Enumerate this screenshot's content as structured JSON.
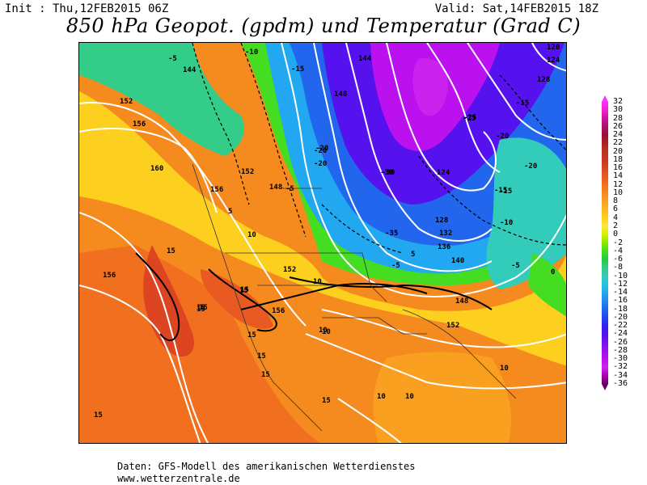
{
  "header": {
    "init": "Init : Thu,12FEB2015 06Z",
    "valid": "Valid: Sat,14FEB2015 18Z",
    "title": "850 hPa Geopot. (gpdm) und Temperatur (Grad C)"
  },
  "colorbar": {
    "levels": [
      "32",
      "30",
      "28",
      "26",
      "24",
      "22",
      "20",
      "18",
      "16",
      "14",
      "12",
      "10",
      "8",
      "6",
      "4",
      "2",
      "0",
      "-2",
      "-4",
      "-6",
      "-8",
      "-10",
      "-12",
      "-14",
      "-16",
      "-18",
      "-20",
      "-22",
      "-24",
      "-26",
      "-28",
      "-30",
      "-32",
      "-34",
      "-36"
    ],
    "colors": [
      "#ff33ff",
      "#ee22cc",
      "#cc1199",
      "#aa1166",
      "#991133",
      "#aa2222",
      "#bb3322",
      "#cc3322",
      "#dd4422",
      "#e85a22",
      "#f07020",
      "#f58a1e",
      "#f9a020",
      "#fcb820",
      "#fdd020",
      "#fde840",
      "#d4f000",
      "#88e800",
      "#44dd22",
      "#22cc44",
      "#33cc88",
      "#33ccbb",
      "#22c4e0",
      "#22a8f0",
      "#2288f0",
      "#2266ee",
      "#2244ee",
      "#3322ee",
      "#5511ee",
      "#7711ee",
      "#9911ee",
      "#bb11ee",
      "#cc22ee",
      "#aa00aa",
      "#660066"
    ]
  },
  "map_labels": {
    "geopotential": [
      "160",
      "156",
      "152",
      "148",
      "144",
      "140",
      "136",
      "132",
      "128",
      "124",
      "120",
      "152",
      "156",
      "152",
      "148",
      "152",
      "156",
      "144",
      "148",
      "124",
      "128",
      "156"
    ],
    "temperature": [
      "-5",
      "-10",
      "-15",
      "-20",
      "-25",
      "-30",
      "-35",
      "-5",
      "5",
      "10",
      "15",
      "15",
      "15",
      "-20",
      "-15",
      "-10",
      "-5",
      "0",
      "10",
      "15",
      "10",
      "-15",
      "-20",
      "-25",
      "-30",
      "5",
      "15",
      "10",
      "-5",
      "-20",
      "-15",
      "-20",
      "10",
      "15",
      "15",
      "15",
      "10",
      "10",
      "15",
      "15",
      "15"
    ]
  },
  "footer": {
    "line1": "Daten: GFS-Modell des amerikanischen Wetterdienstes",
    "line2": "www.wetterzentrale.de"
  }
}
